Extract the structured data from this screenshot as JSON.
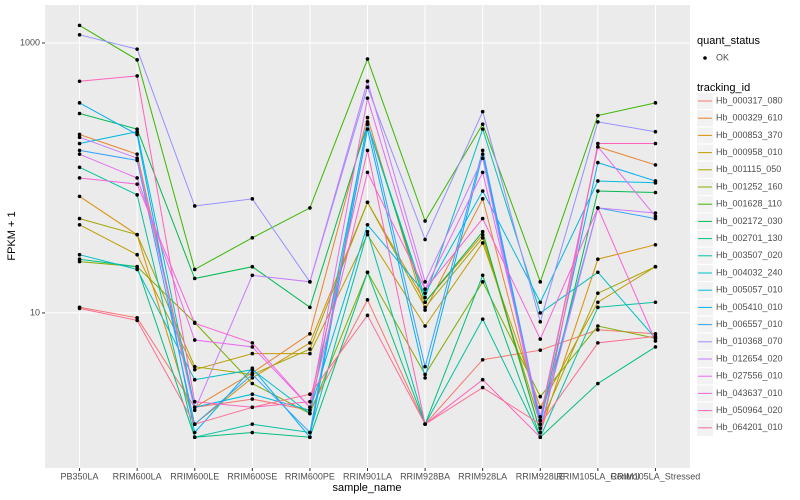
{
  "chart_data": {
    "type": "line",
    "x_title": "sample_name",
    "y_title": "FPKM + 1",
    "y_scale": "log",
    "grid": true,
    "ylim": [
      0.71,
      1911
    ],
    "yticks": [
      10,
      1000
    ],
    "point_legend": {
      "title": "quant_status",
      "label": "OK"
    },
    "color_legend_title": "tracking_id",
    "point_color": "#000000",
    "categories": [
      "PB350LA",
      "RRIM600LA",
      "RRIM600LE",
      "RRIM600SE",
      "RRIM600PE",
      "RRIM901LA",
      "RRIM928BA",
      "RRIM928LA",
      "RRIM928LE",
      "RRIM105LA_Control",
      "RRIM105LA_Stressed"
    ],
    "series": [
      {
        "name": "Hb_000317_080",
        "color": "#F8766D",
        "values": [
          11,
          9.2,
          2.0,
          2.3,
          1.9,
          12.5,
          1.5,
          4.5,
          5.3,
          7.5,
          7
        ]
      },
      {
        "name": "Hb_000329_610",
        "color": "#EA8331",
        "values": [
          210,
          150,
          2.0,
          3.6,
          7.0,
          280,
          10.5,
          70,
          1.6,
          170,
          125
        ]
      },
      {
        "name": "Hb_000853_370",
        "color": "#D89000",
        "values": [
          73,
          38,
          1.5,
          3.3,
          6.0,
          66,
          12,
          38,
          1.3,
          25,
          32
        ]
      },
      {
        "name": "Hb_000958_010",
        "color": "#C09B00",
        "values": [
          45,
          27,
          3.8,
          5.0,
          5.0,
          38,
          8.0,
          33,
          2.0,
          12,
          22
        ]
      },
      {
        "name": "Hb_001115_050",
        "color": "#A3A500",
        "values": [
          50,
          38,
          4.0,
          3.5,
          5.4,
          66,
          11,
          36,
          1.5,
          14,
          22
        ]
      },
      {
        "name": "Hb_001252_160",
        "color": "#7CAE00",
        "values": [
          24,
          22,
          8.5,
          3.0,
          1.8,
          20,
          3.5,
          17,
          2.4,
          8,
          6.5
        ]
      },
      {
        "name": "Hb_001628_110",
        "color": "#39B600",
        "values": [
          1350,
          750,
          21,
          36,
          60,
          760,
          48,
          250,
          17,
          290,
          360
        ]
      },
      {
        "name": "Hb_002172_030",
        "color": "#00BB4E",
        "values": [
          300,
          230,
          18,
          22,
          11,
          250,
          12,
          40,
          1.3,
          80,
          78
        ]
      },
      {
        "name": "Hb_002701_130",
        "color": "#00BF7D",
        "values": [
          25,
          22,
          1.2,
          1.3,
          1.2,
          20,
          1.5,
          19,
          1.2,
          3.0,
          5.6
        ]
      },
      {
        "name": "Hb_003507_020",
        "color": "#00C1A3",
        "values": [
          120,
          75,
          1.2,
          1.5,
          1.3,
          40,
          1.5,
          9.0,
          1.2,
          11,
          12
        ]
      },
      {
        "name": "Hb_004032_240",
        "color": "#00BFC4",
        "values": [
          27,
          21,
          3.2,
          3.8,
          1.8,
          250,
          13,
          230,
          10,
          20,
          6.5
        ]
      },
      {
        "name": "Hb_005057_010",
        "color": "#00BAE0",
        "values": [
          180,
          220,
          2.0,
          2.5,
          1.9,
          45,
          14,
          80,
          12,
          95,
          92
        ]
      },
      {
        "name": "Hb_005410_010",
        "color": "#00B0F6",
        "values": [
          360,
          210,
          1.3,
          3.9,
          1.2,
          230,
          3.3,
          150,
          1.5,
          130,
          95
        ]
      },
      {
        "name": "Hb_006557_010",
        "color": "#35A2FF",
        "values": [
          160,
          135,
          1.5,
          3.5,
          1.3,
          260,
          4.0,
          160,
          1.6,
          60,
          50
        ]
      },
      {
        "name": "Hb_010368_070",
        "color": "#9590FF",
        "values": [
          1150,
          900,
          62,
          70,
          17,
          470,
          35,
          310,
          8.6,
          260,
          220
        ]
      },
      {
        "name": "Hb_012654_020",
        "color": "#C77CFF",
        "values": [
          200,
          140,
          1.9,
          19,
          17,
          520,
          17,
          140,
          1.4,
          60,
          55
        ]
      },
      {
        "name": "Hb_027556_010",
        "color": "#E76BF3",
        "values": [
          150,
          100,
          6.3,
          5.6,
          2.0,
          390,
          15,
          110,
          1.7,
          170,
          52
        ]
      },
      {
        "name": "Hb_043637_010",
        "color": "#FA62DB",
        "values": [
          100,
          90,
          8.4,
          6.0,
          2.0,
          110,
          15,
          50,
          6.4,
          60,
          6.2
        ]
      },
      {
        "name": "Hb_050964_020",
        "color": "#FF62BC",
        "values": [
          520,
          570,
          2.2,
          2.0,
          2.2,
          160,
          1.5,
          3.2,
          1.2,
          180,
          180
        ]
      },
      {
        "name": "Hb_064201_010",
        "color": "#FF6C91",
        "values": [
          10.8,
          8.8,
          1.5,
          2.0,
          2.5,
          9.6,
          1.5,
          2.8,
          1.5,
          6.0,
          6.7
        ]
      }
    ]
  }
}
